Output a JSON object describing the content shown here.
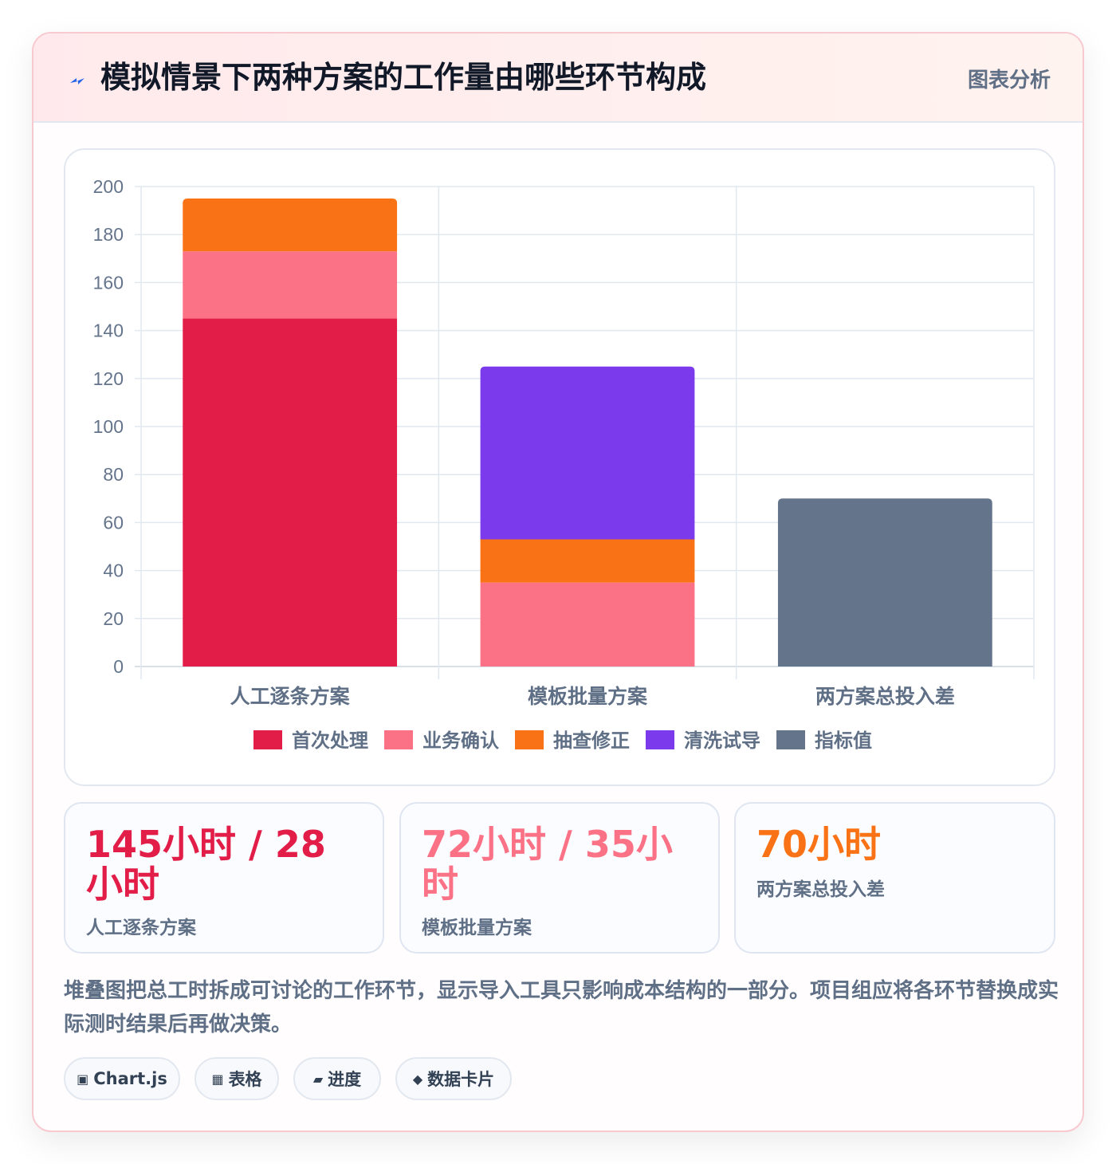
{
  "header": {
    "title": "模拟情景下两种方案的工作量由哪些环节构成",
    "tag": "图表分析",
    "icon": "bolt-icon"
  },
  "chart_data": {
    "type": "bar",
    "stacked": true,
    "categories": [
      "人工逐条方案",
      "模板批量方案",
      "两方案总投入差"
    ],
    "series": [
      {
        "name": "首次处理",
        "color": "#e11d48",
        "values": [
          145,
          0,
          0
        ]
      },
      {
        "name": "业务确认",
        "color": "#fb7185",
        "values": [
          28,
          35,
          0
        ]
      },
      {
        "name": "抽查修正",
        "color": "#f97316",
        "values": [
          22,
          18,
          0
        ]
      },
      {
        "name": "清洗试导",
        "color": "#7c3aed",
        "values": [
          0,
          72,
          0
        ]
      },
      {
        "name": "指标值",
        "color": "#64748b",
        "values": [
          0,
          0,
          70
        ]
      }
    ],
    "yticks": [
      "0",
      "20",
      "40",
      "60",
      "80",
      "100",
      "120",
      "140",
      "160",
      "180",
      "200"
    ],
    "ylim": [
      0,
      200
    ],
    "grid": true,
    "legend_position": "bottom"
  },
  "stats": [
    {
      "value": "145小时 / 28小时",
      "label": "人工逐条方案"
    },
    {
      "value": "72小时 / 35小时",
      "label": "模板批量方案"
    },
    {
      "value": "70小时",
      "label": "两方案总投入差"
    }
  ],
  "note": "堆叠图把总工时拆成可讨论的工作环节，显示导入工具只影响成本结构的一部分。项目组应将各环节替换成实际测时结果后再做决策。",
  "chips": [
    {
      "icon": "▣",
      "label": "Chart.js"
    },
    {
      "icon": "▦",
      "label": "表格"
    },
    {
      "icon": "▰",
      "label": "进度"
    },
    {
      "icon": "◆",
      "label": "数据卡片"
    }
  ]
}
